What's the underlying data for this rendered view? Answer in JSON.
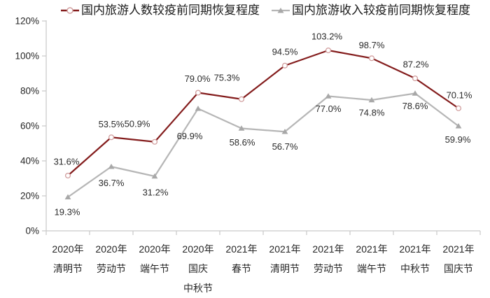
{
  "chart_data": {
    "type": "line",
    "title": "",
    "legend_position": "top",
    "grid": false,
    "axis_color": "#c9c9c9",
    "tick_label_color": "#262626",
    "data_label_color": "#2b2b2b",
    "categories": [
      [
        "2020年",
        "清明节"
      ],
      [
        "2020年",
        "劳动节"
      ],
      [
        "2020年",
        "端午节"
      ],
      [
        "2020年",
        "国庆",
        "中秋节"
      ],
      [
        "2021年",
        "春节"
      ],
      [
        "2021年",
        "清明节"
      ],
      [
        "2021年",
        "劳动节"
      ],
      [
        "2021年",
        "端午节"
      ],
      [
        "2021年",
        "中秋节"
      ],
      [
        "2021年",
        "国庆节"
      ]
    ],
    "y_axis": {
      "min": 0,
      "max": 120,
      "step": 20,
      "tick_labels": [
        "0%",
        "20%",
        "40%",
        "60%",
        "80%",
        "100%",
        "120%"
      ]
    },
    "series": [
      {
        "key": "visitors",
        "name": "国内旅游人数较疫前同期恢复程度",
        "marker": "open-circle",
        "color": "#841d1d",
        "marker_stroke": "#d09c9c",
        "values": [
          31.6,
          53.5,
          50.9,
          79.0,
          75.3,
          94.5,
          103.2,
          98.7,
          87.2,
          70.1
        ],
        "labels": [
          "31.6%",
          "53.5%",
          "50.9%",
          "79.0%",
          "75.3%",
          "94.5%",
          "103.2%",
          "98.7%",
          "87.2%",
          "70.1%"
        ]
      },
      {
        "key": "revenue",
        "name": "国内旅游收入较疫前同期恢复程度",
        "marker": "triangle",
        "color": "#b6b6b6",
        "marker_fill": "#a8a8a8",
        "values": [
          19.3,
          36.7,
          31.2,
          69.9,
          58.6,
          56.7,
          77.0,
          74.8,
          78.6,
          59.9
        ],
        "labels": [
          "19.3%",
          "36.7%",
          "31.2%",
          "69.9%",
          "58.6%",
          "56.7%",
          "77.0%",
          "74.8%",
          "78.6%",
          "59.9%"
        ]
      }
    ]
  }
}
